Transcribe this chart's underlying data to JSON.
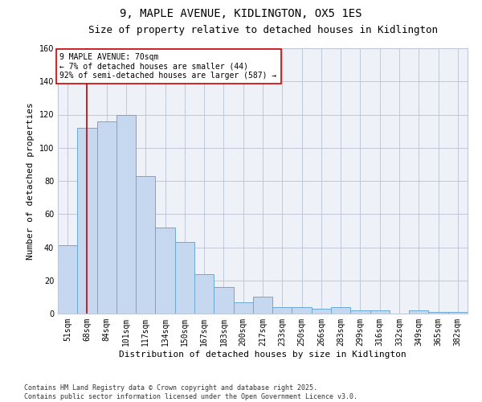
{
  "title1": "9, MAPLE AVENUE, KIDLINGTON, OX5 1ES",
  "title2": "Size of property relative to detached houses in Kidlington",
  "xlabel": "Distribution of detached houses by size in Kidlington",
  "ylabel": "Number of detached properties",
  "categories": [
    "51sqm",
    "68sqm",
    "84sqm",
    "101sqm",
    "117sqm",
    "134sqm",
    "150sqm",
    "167sqm",
    "183sqm",
    "200sqm",
    "217sqm",
    "233sqm",
    "250sqm",
    "266sqm",
    "283sqm",
    "299sqm",
    "316sqm",
    "332sqm",
    "349sqm",
    "365sqm",
    "382sqm"
  ],
  "values": [
    41,
    112,
    116,
    120,
    83,
    52,
    43,
    24,
    16,
    7,
    10,
    4,
    4,
    3,
    4,
    2,
    2,
    0,
    2,
    1,
    1
  ],
  "bar_color": "#c5d8f0",
  "bar_edge_color": "#6aaad4",
  "vline_x_index": 1,
  "vline_color": "#cc0000",
  "annotation_text": "9 MAPLE AVENUE: 70sqm\n← 7% of detached houses are smaller (44)\n92% of semi-detached houses are larger (587) →",
  "annotation_box_color": "#ffffff",
  "annotation_box_edge_color": "#cc0000",
  "ylim": [
    0,
    160
  ],
  "yticks": [
    0,
    20,
    40,
    60,
    80,
    100,
    120,
    140,
    160
  ],
  "grid_color": "#c0c8d8",
  "bg_color": "#eef2f8",
  "footer": "Contains HM Land Registry data © Crown copyright and database right 2025.\nContains public sector information licensed under the Open Government Licence v3.0.",
  "title_fontsize": 10,
  "subtitle_fontsize": 9,
  "axis_label_fontsize": 8,
  "tick_fontsize": 7,
  "annotation_fontsize": 7,
  "footer_fontsize": 6
}
